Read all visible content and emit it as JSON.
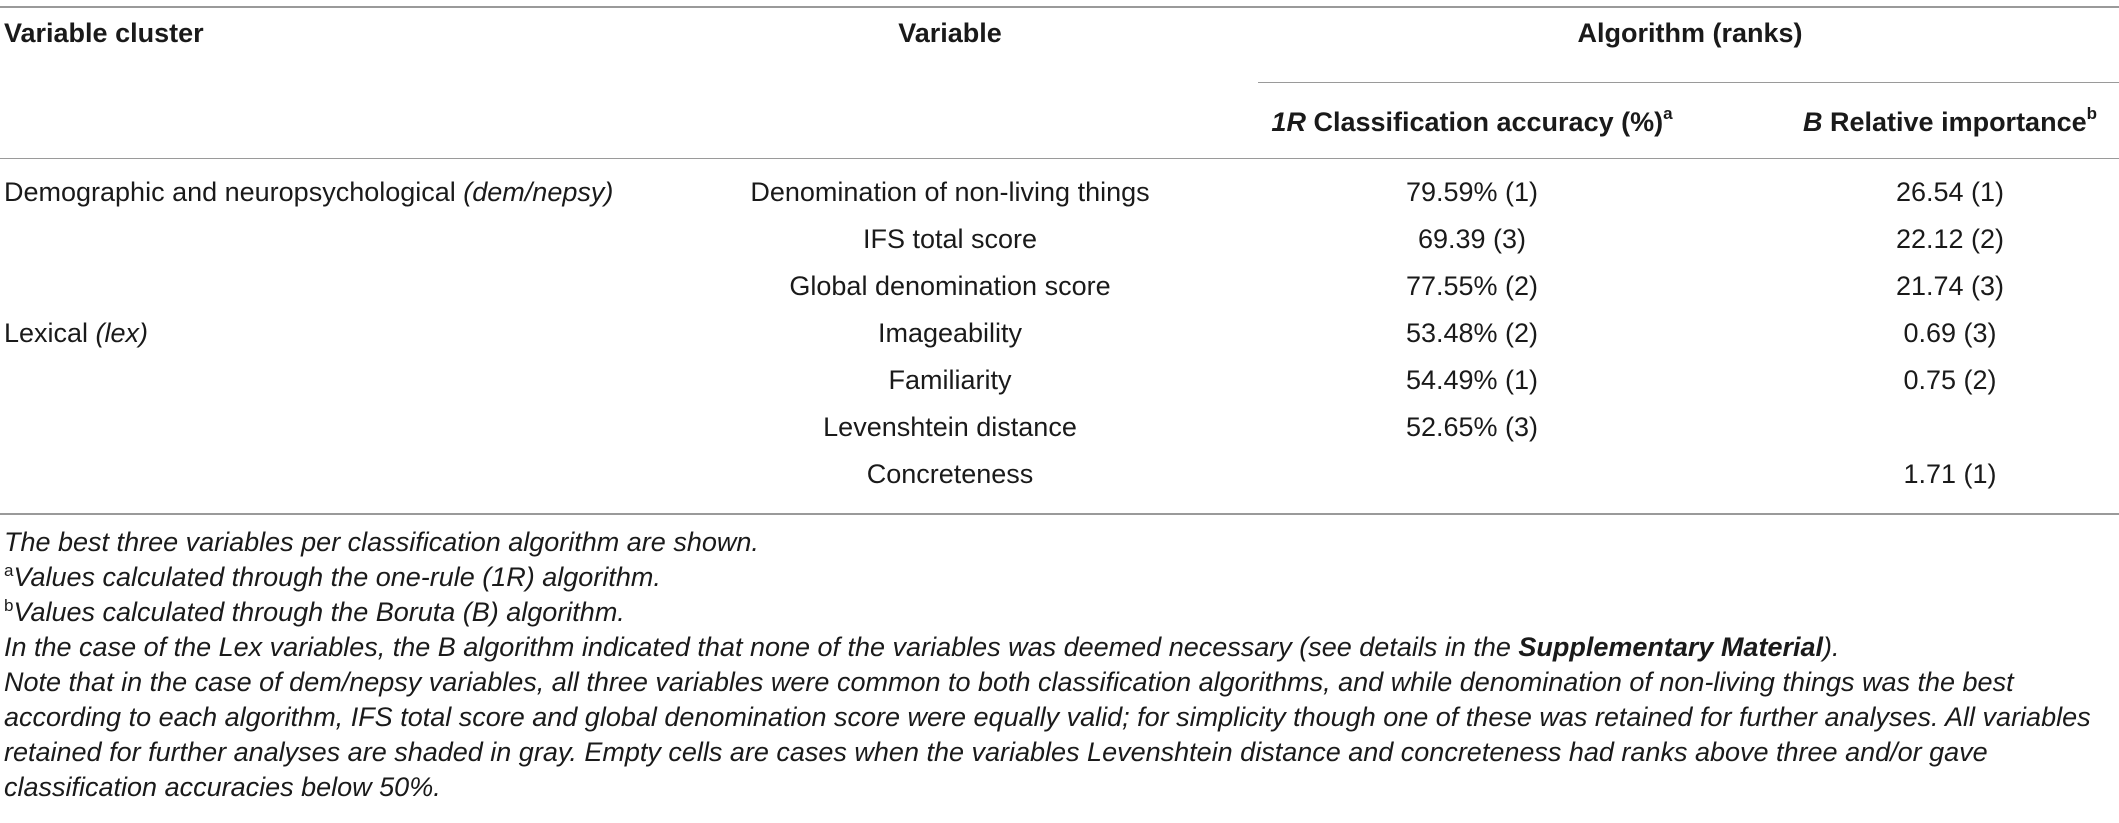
{
  "headers": {
    "cluster": "Variable cluster",
    "variable": "Variable",
    "algorithm": "Algorithm (ranks)",
    "col1_em": "1R",
    "col1_text": " Classification accuracy (%)",
    "col1_sup": "a",
    "col2_em": "B",
    "col2_text": " Relative importance",
    "col2_sup": "b"
  },
  "rows": [
    {
      "cluster": "Demographic and neuropsychological ",
      "cluster_em": "(dem/nepsy)",
      "variable": "Denomination of non-living things",
      "accuracy": "79.59% (1)",
      "importance": "26.54 (1)"
    },
    {
      "cluster": "",
      "cluster_em": "",
      "variable": "IFS total score",
      "accuracy": "69.39 (3)",
      "importance": "22.12 (2)"
    },
    {
      "cluster": "",
      "cluster_em": "",
      "variable": "Global denomination score",
      "accuracy": "77.55% (2)",
      "importance": "21.74 (3)"
    },
    {
      "cluster": "Lexical ",
      "cluster_em": "(lex)",
      "variable": "Imageability",
      "accuracy": "53.48% (2)",
      "importance": "0.69 (3)"
    },
    {
      "cluster": "",
      "cluster_em": "",
      "variable": "Familiarity",
      "accuracy": "54.49% (1)",
      "importance": "0.75 (2)"
    },
    {
      "cluster": "",
      "cluster_em": "",
      "variable": "Levenshtein distance",
      "accuracy": "52.65% (3)",
      "importance": ""
    },
    {
      "cluster": "",
      "cluster_em": "",
      "variable": "Concreteness",
      "accuracy": "",
      "importance": "1.71 (1)"
    }
  ],
  "notes": {
    "n1": "The best three variables per classification algorithm are shown.",
    "n2_sup": "a",
    "n2": "Values calculated through the one-rule (1R) algorithm.",
    "n3_sup": "b",
    "n3": "Values calculated through the Boruta (B) algorithm.",
    "n4_pre": "In the case of the Lex variables, the B algorithm indicated that none of the variables was deemed necessary (see details in the ",
    "n4_bold": "Supplementary Material",
    "n4_post": ").",
    "n5": "Note that in the case of dem/nepsy variables, all three variables were common to both classification algorithms, and while denomination of non-living things was the best according to each algorithm, IFS total score and global denomination score were equally valid; for simplicity though one of these was retained for further analyses. All variables retained for further analyses are shaded in gray. Empty cells are cases when the variables Levenshtein distance and concreteness had ranks above three and/or gave classification accuracies below 50%."
  }
}
